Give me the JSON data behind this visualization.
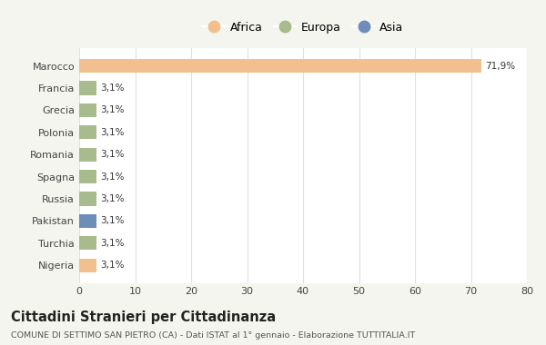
{
  "categories": [
    "Marocco",
    "Francia",
    "Grecia",
    "Polonia",
    "Romania",
    "Spagna",
    "Russia",
    "Pakistan",
    "Turchia",
    "Nigeria"
  ],
  "values": [
    71.9,
    3.1,
    3.1,
    3.1,
    3.1,
    3.1,
    3.1,
    3.1,
    3.1,
    3.1
  ],
  "labels": [
    "71,9%",
    "3,1%",
    "3,1%",
    "3,1%",
    "3,1%",
    "3,1%",
    "3,1%",
    "3,1%",
    "3,1%",
    "3,1%"
  ],
  "bar_colors": [
    "#F2BF8E",
    "#A8BB8C",
    "#A8BB8C",
    "#A8BB8C",
    "#A8BB8C",
    "#A8BB8C",
    "#A8BB8C",
    "#6E8DB8",
    "#A8BB8C",
    "#F2BF8E"
  ],
  "legend_labels": [
    "Africa",
    "Europa",
    "Asia"
  ],
  "legend_colors": [
    "#F2BF8E",
    "#A8BB8C",
    "#6E8DB8"
  ],
  "xlim": [
    0,
    80
  ],
  "xticks": [
    0,
    10,
    20,
    30,
    40,
    50,
    60,
    70,
    80
  ],
  "title": "Cittadini Stranieri per Cittadinanza",
  "subtitle": "COMUNE DI SETTIMO SAN PIETRO (CA) - Dati ISTAT al 1° gennaio - Elaborazione TUTTITALIA.IT",
  "background_color": "#f5f5f0",
  "plot_bg_color": "#ffffff",
  "grid_color": "#e0e0e0"
}
